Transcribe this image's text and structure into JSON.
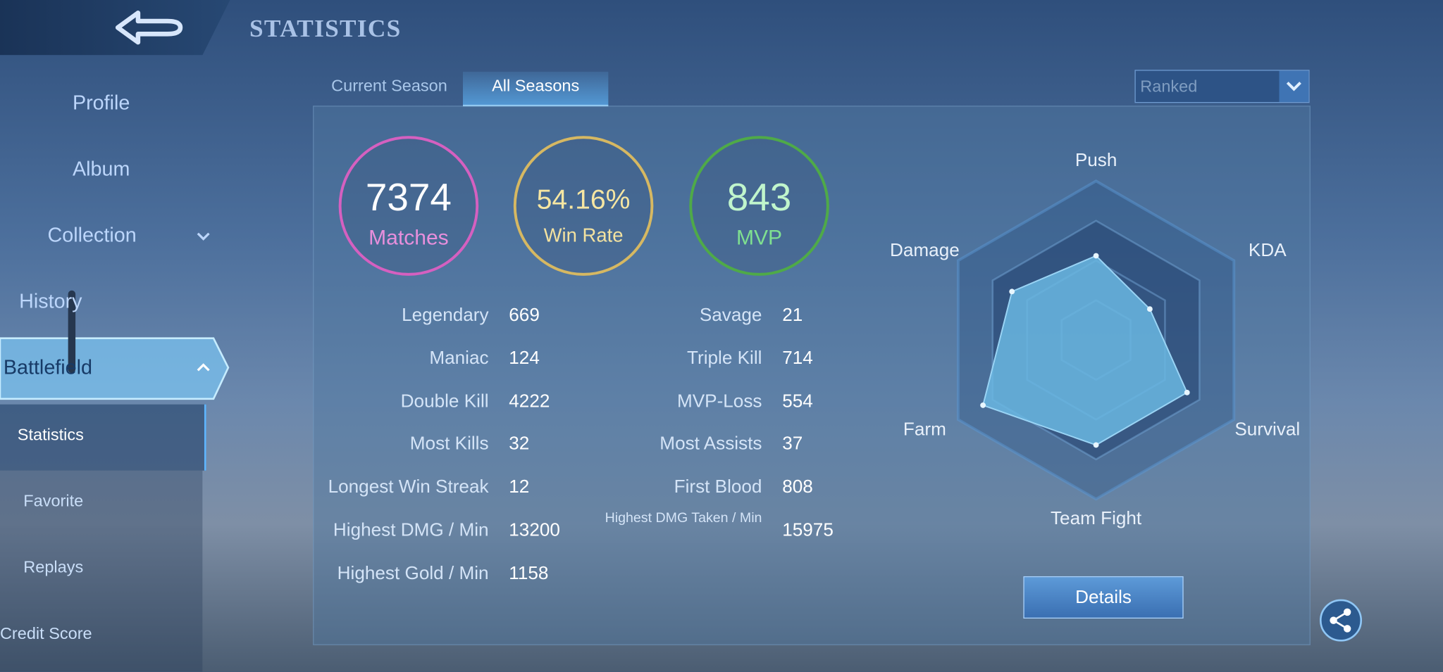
{
  "header": {
    "title": "STATISTICS"
  },
  "sidebar": {
    "items": [
      "Profile",
      "Album",
      "Collection",
      "History",
      "Battlefield",
      "Statistics",
      "Favorite",
      "Replays",
      "Credit Score"
    ]
  },
  "tabs": [
    "Current Season",
    "All Seasons"
  ],
  "filter": {
    "mode": "Ranked"
  },
  "summary": [
    {
      "value": "7374",
      "label": "Matches"
    },
    {
      "value": "54.16%",
      "label": "Win Rate"
    },
    {
      "value": "843",
      "label": "MVP"
    }
  ],
  "stats": {
    "left": [
      [
        "Legendary",
        "669"
      ],
      [
        "Maniac",
        "124"
      ],
      [
        "Double Kill",
        "4222"
      ],
      [
        "Most Kills",
        "32"
      ],
      [
        "Longest Win Streak",
        "12"
      ],
      [
        "Highest DMG / Min",
        "13200"
      ],
      [
        "Highest Gold / Min",
        "1158"
      ]
    ],
    "right": [
      [
        "Savage",
        "21"
      ],
      [
        "Triple Kill",
        "714"
      ],
      [
        "MVP-Loss",
        "554"
      ],
      [
        "Most Assists",
        "37"
      ],
      [
        "First Blood",
        "808"
      ],
      [
        "Highest DMG Taken / Min",
        "15975"
      ]
    ]
  },
  "radar": {
    "type": "radar",
    "axes": [
      "Push",
      "KDA",
      "Survival",
      "Team Fight",
      "Farm",
      "Damage"
    ],
    "values": [
      53,
      39,
      66,
      66,
      82,
      61
    ],
    "rlim": [
      0,
      100
    ]
  },
  "button": "Details"
}
